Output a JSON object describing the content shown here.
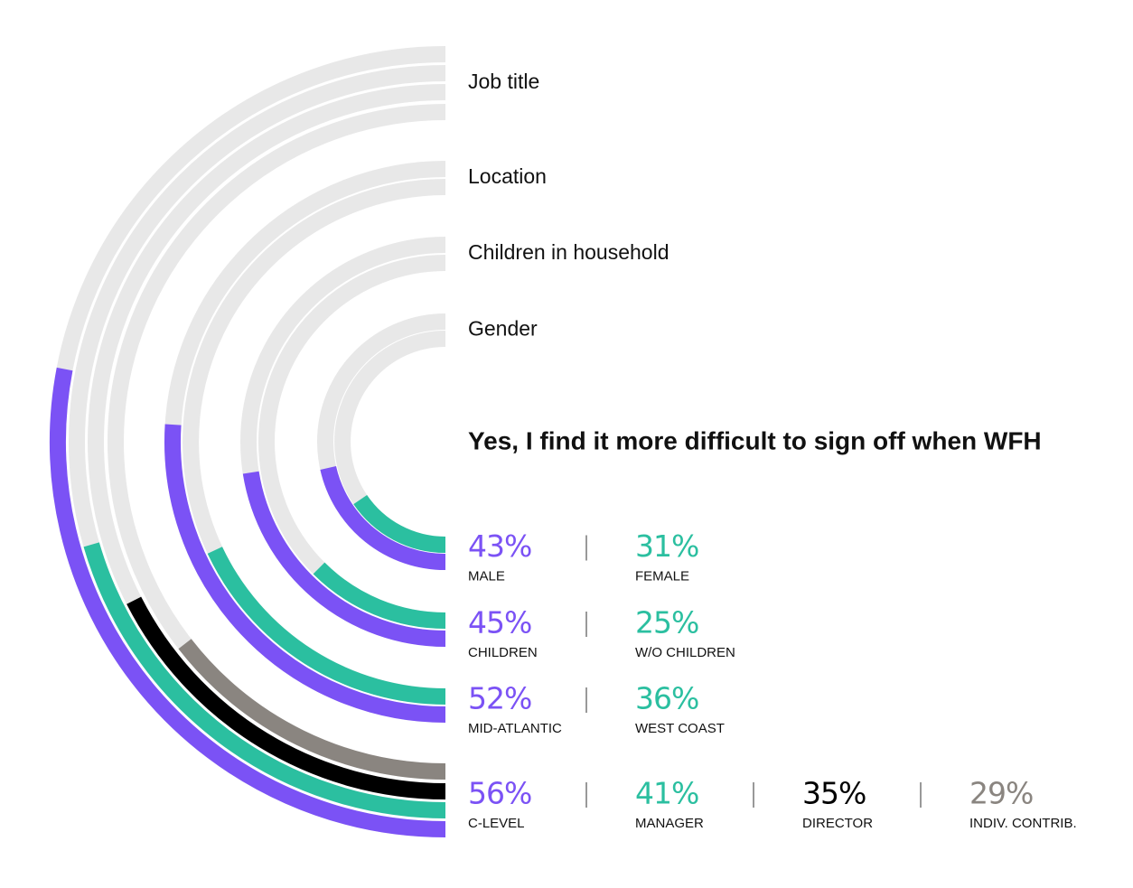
{
  "chart_data": {
    "type": "radial-bar",
    "title": "Yes, I find it more difficult to sign off when WFH",
    "track_color": "#e8e8e8",
    "groups": [
      {
        "label": "Gender",
        "series": [
          {
            "name": "MALE",
            "values": [
              43
            ],
            "value_labels": [
              "43%"
            ],
            "color": "#7b52f5"
          },
          {
            "name": "FEMALE",
            "values": [
              31
            ],
            "value_labels": [
              "31%"
            ],
            "color": "#2bbfa0"
          }
        ]
      },
      {
        "label": "Children in household",
        "series": [
          {
            "name": "CHILDREN",
            "values": [
              45
            ],
            "value_labels": [
              "45%"
            ],
            "color": "#7b52f5"
          },
          {
            "name": "W/O CHILDREN",
            "values": [
              25
            ],
            "value_labels": [
              "25%"
            ],
            "color": "#2bbfa0"
          }
        ]
      },
      {
        "label": "Location",
        "series": [
          {
            "name": "MID-ATLANTIC",
            "values": [
              52
            ],
            "value_labels": [
              "52%"
            ],
            "color": "#7b52f5"
          },
          {
            "name": "WEST COAST",
            "values": [
              36
            ],
            "value_labels": [
              "36%"
            ],
            "color": "#2bbfa0"
          }
        ]
      },
      {
        "label": "Job title",
        "series": [
          {
            "name": "C-LEVEL",
            "values": [
              56
            ],
            "value_labels": [
              "56%"
            ],
            "color": "#7b52f5"
          },
          {
            "name": "MANAGER",
            "values": [
              41
            ],
            "value_labels": [
              "41%"
            ],
            "color": "#2bbfa0"
          },
          {
            "name": "DIRECTOR",
            "values": [
              35
            ],
            "value_labels": [
              "35%"
            ],
            "color": "#000000"
          },
          {
            "name": "INDIV. CONTRIB.",
            "values": [
              29
            ],
            "value_labels": [
              "29%"
            ],
            "color": "#8a8580"
          }
        ]
      }
    ],
    "vlim": [
      0,
      100
    ]
  }
}
